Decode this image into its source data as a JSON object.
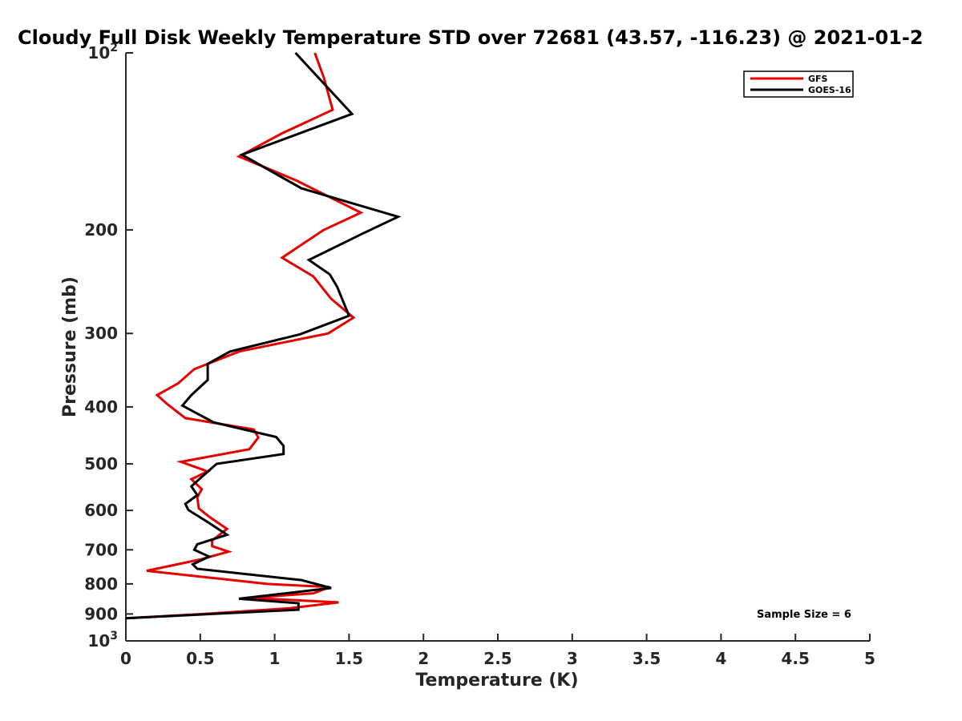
{
  "chart_data": {
    "type": "line",
    "title": "Cloudy Full Disk Weekly Temperature STD over 72681 (43.57, -116.23) @ 2021-01-2",
    "xlabel": "Temperature (K)",
    "ylabel": "Pressure (mb)",
    "xlim": [
      0,
      5
    ],
    "ylim": [
      100,
      1000
    ],
    "yscale": "log",
    "y_reversed": true,
    "grid": false,
    "x_ticks": [
      "0",
      "0.5",
      "1",
      "1.5",
      "2",
      "2.5",
      "3",
      "3.5",
      "4",
      "4.5",
      "5"
    ],
    "x_tick_values": [
      0,
      0.5,
      1,
      1.5,
      2,
      2.5,
      3,
      3.5,
      4,
      4.5,
      5
    ],
    "y_tick_values": [
      100,
      200,
      300,
      400,
      500,
      600,
      700,
      800,
      900,
      1000
    ],
    "y_tick_labels": [
      {
        "base": "10",
        "sup": "2"
      },
      {
        "base": "200",
        "sup": ""
      },
      {
        "base": "300",
        "sup": ""
      },
      {
        "base": "400",
        "sup": ""
      },
      {
        "base": "500",
        "sup": ""
      },
      {
        "base": "600",
        "sup": ""
      },
      {
        "base": "700",
        "sup": ""
      },
      {
        "base": "800",
        "sup": ""
      },
      {
        "base": "900",
        "sup": ""
      },
      {
        "base": "10",
        "sup": "3"
      }
    ],
    "legend_position": "top-right",
    "annotation": "Sample Size = 6",
    "series": [
      {
        "name": "GFS",
        "color": "#e60000",
        "points": [
          [
            1.27,
            100
          ],
          [
            1.33,
            110
          ],
          [
            1.39,
            125
          ],
          [
            1.05,
            137
          ],
          [
            0.76,
            150
          ],
          [
            1.15,
            165
          ],
          [
            1.58,
            187
          ],
          [
            1.33,
            200
          ],
          [
            1.05,
            223
          ],
          [
            1.26,
            240
          ],
          [
            1.38,
            262
          ],
          [
            1.53,
            282
          ],
          [
            1.36,
            300
          ],
          [
            0.76,
            322
          ],
          [
            0.46,
            345
          ],
          [
            0.35,
            365
          ],
          [
            0.21,
            382
          ],
          [
            0.28,
            396
          ],
          [
            0.4,
            418
          ],
          [
            0.86,
            437
          ],
          [
            0.89,
            451
          ],
          [
            0.83,
            472
          ],
          [
            0.37,
            496
          ],
          [
            0.55,
            515
          ],
          [
            0.44,
            531
          ],
          [
            0.51,
            552
          ],
          [
            0.48,
            570
          ],
          [
            0.49,
            595
          ],
          [
            0.56,
            615
          ],
          [
            0.68,
            645
          ],
          [
            0.58,
            675
          ],
          [
            0.58,
            690
          ],
          [
            0.69,
            705
          ],
          [
            0.5,
            727
          ],
          [
            0.14,
            760
          ],
          [
            0.65,
            785
          ],
          [
            0.95,
            800
          ],
          [
            1.37,
            810
          ],
          [
            1.26,
            830
          ],
          [
            0.83,
            845
          ],
          [
            1.43,
            860
          ],
          [
            1.1,
            880
          ],
          [
            0.52,
            900
          ],
          [
            0.0,
            915
          ]
        ]
      },
      {
        "name": "GOES-16",
        "color": "#000000",
        "points": [
          [
            1.14,
            100
          ],
          [
            1.52,
            127
          ],
          [
            0.78,
            149
          ],
          [
            1.18,
            170
          ],
          [
            1.83,
            190
          ],
          [
            1.59,
            203
          ],
          [
            1.23,
            225
          ],
          [
            1.37,
            238
          ],
          [
            1.42,
            250
          ],
          [
            1.5,
            280
          ],
          [
            1.17,
            301
          ],
          [
            0.7,
            322
          ],
          [
            0.55,
            338
          ],
          [
            0.55,
            360
          ],
          [
            0.44,
            382
          ],
          [
            0.38,
            398
          ],
          [
            0.59,
            425
          ],
          [
            1.01,
            450
          ],
          [
            1.06,
            466
          ],
          [
            1.06,
            481
          ],
          [
            0.61,
            500
          ],
          [
            0.5,
            529
          ],
          [
            0.44,
            546
          ],
          [
            0.48,
            565
          ],
          [
            0.4,
            585
          ],
          [
            0.42,
            599
          ],
          [
            0.55,
            628
          ],
          [
            0.68,
            660
          ],
          [
            0.48,
            685
          ],
          [
            0.46,
            700
          ],
          [
            0.56,
            719
          ],
          [
            0.45,
            741
          ],
          [
            0.48,
            754
          ],
          [
            1.18,
            788
          ],
          [
            1.38,
            813
          ],
          [
            0.76,
            848
          ],
          [
            1.16,
            863
          ],
          [
            1.16,
            885
          ],
          [
            0.0,
            915
          ]
        ]
      }
    ]
  }
}
